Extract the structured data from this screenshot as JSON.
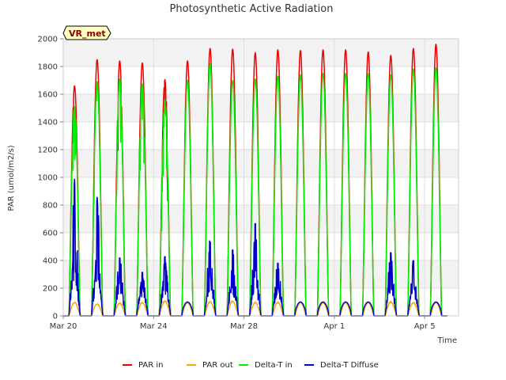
{
  "chart_data": {
    "type": "line",
    "title": "Photosynthetic Active Radiation",
    "xlabel": "Time",
    "ylabel": "PAR (umol/m2/s)",
    "ylim": [
      0,
      2000
    ],
    "xlim_days": [
      0,
      17.5
    ],
    "yticks": [
      0,
      200,
      400,
      600,
      800,
      1000,
      1200,
      1400,
      1600,
      1800,
      2000
    ],
    "xticks": [
      {
        "day": 0,
        "label": "Mar 20"
      },
      {
        "day": 4,
        "label": "Mar 24"
      },
      {
        "day": 8,
        "label": "Mar 28"
      },
      {
        "day": 12,
        "label": "Apr 1"
      },
      {
        "day": 16,
        "label": "Apr 5"
      }
    ],
    "grid": true,
    "legend_position": "bottom",
    "site_badge": "VR_met",
    "series": [
      {
        "name": "PAR in",
        "color": "#ee0000",
        "daily_peaks": [
          1660,
          1850,
          1840,
          1825,
          1705,
          1840,
          1930,
          1925,
          1900,
          1920,
          1915,
          1920,
          1920,
          1905,
          1880,
          1930,
          1960
        ]
      },
      {
        "name": "PAR out",
        "color": "#ffa500",
        "daily_peaks": [
          100,
          90,
          95,
          100,
          110,
          100,
          105,
          110,
          100,
          100,
          100,
          100,
          100,
          100,
          105,
          100,
          100
        ]
      },
      {
        "name": "Delta-T in",
        "color": "#00ee00",
        "daily_peaks": [
          1510,
          1690,
          1710,
          1680,
          1560,
          1700,
          1820,
          1700,
          1710,
          1730,
          1740,
          1750,
          1750,
          1750,
          1740,
          1780,
          1790
        ]
      },
      {
        "name": "Delta-T Diffuse",
        "color": "#0000cc",
        "daily_peaks": [
          1000,
          880,
          440,
          330,
          450,
          140,
          560,
          500,
          700,
          400,
          110,
          140,
          120,
          120,
          480,
          420,
          190
        ]
      }
    ]
  }
}
